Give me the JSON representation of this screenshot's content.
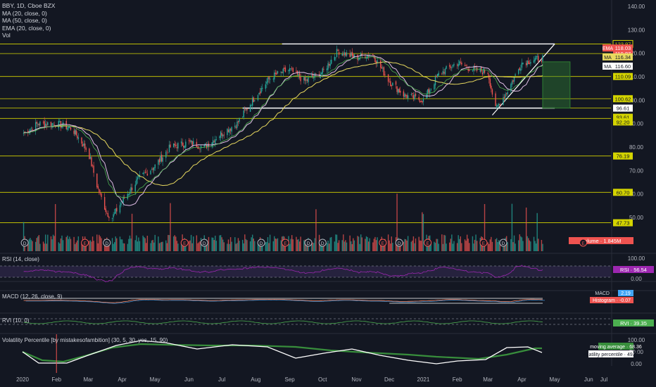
{
  "symbol": {
    "name": "BBY",
    "interval": "1D",
    "exchange": "Cboe BZX"
  },
  "indicators": [
    {
      "label": "MA (20, close, 0)"
    },
    {
      "label": "MA (50, close, 0)"
    },
    {
      "label": "EMA (20, close, 0)"
    },
    {
      "label": "Vol"
    }
  ],
  "colors": {
    "background": "#131722",
    "up": "#26a69a",
    "down": "#ef5350",
    "ma20": "#e1bee7",
    "ma50": "#e8d95f",
    "ema20": "#4caf50",
    "level_line": "#d4d400",
    "white_line": "#ffffff",
    "rsi_band": "#7e57c2",
    "rsi_line": "#9c27b0",
    "macd_line": "#ff8a65",
    "signal_line": "#42a5f5",
    "rvi": "#4caf50",
    "vp_ma": "#388e3c",
    "vp": "#ffffff",
    "zone": "#2e7d32"
  },
  "x_axis": [
    "2020",
    "Feb",
    "Mar",
    "Apr",
    "May",
    "Jun",
    "Jul",
    "Aug",
    "Sep",
    "Oct",
    "Nov",
    "Dec",
    "2021",
    "Feb",
    "Mar",
    "Apr",
    "May",
    "Jun",
    "Jul"
  ],
  "chart_data": [
    {
      "type": "candlestick",
      "title": "BBY, 1D, Cboe BZX",
      "ylim": [
        40,
        140
      ],
      "y_ticks": [
        "140.00",
        "130.00",
        "120.00",
        "110.00",
        "100.00",
        "90.00",
        "80.00",
        "70.00",
        "60.00",
        "50.00"
      ],
      "horizontal_levels": [
        "123.97",
        "119.87",
        "116.60",
        "118.03",
        "116.34",
        "110.09",
        "100.62",
        "96.61",
        "93.61",
        "92.20",
        "76.19",
        "60.70",
        "47.73"
      ],
      "price_labels": [
        {
          "name": "MA",
          "value": "116.60"
        },
        {
          "name": "EMA",
          "value": "118.03"
        },
        {
          "name": "MA",
          "value": "116.34"
        }
      ],
      "close_series": {
        "x": [
          "2020-01-02",
          "2020-01-15",
          "2020-02-01",
          "2020-02-15",
          "2020-03-01",
          "2020-03-10",
          "2020-03-18",
          "2020-03-23",
          "2020-04-01",
          "2020-04-15",
          "2020-05-01",
          "2020-05-15",
          "2020-06-01",
          "2020-06-15",
          "2020-07-01",
          "2020-07-15",
          "2020-08-01",
          "2020-08-15",
          "2020-09-01",
          "2020-09-15",
          "2020-10-01",
          "2020-10-15",
          "2020-11-01",
          "2020-11-15",
          "2020-12-01",
          "2020-12-15",
          "2021-01-01",
          "2021-01-15",
          "2021-02-01",
          "2021-02-15",
          "2021-03-01",
          "2021-03-08",
          "2021-03-20",
          "2021-04-01",
          "2021-04-10",
          "2021-04-20"
        ],
        "y": [
          86,
          90,
          90,
          88,
          78,
          62,
          52,
          50,
          57,
          66,
          72,
          80,
          82,
          80,
          86,
          90,
          102,
          110,
          113,
          108,
          112,
          121,
          118,
          120,
          108,
          102,
          100,
          111,
          116,
          113,
          112,
          96,
          105,
          116,
          117,
          118
        ]
      },
      "zone": {
        "x_start": "2021-04-20",
        "x_end": "2021-05-15",
        "y_top": 116.34,
        "y_bottom": 96.61
      }
    },
    {
      "type": "bar",
      "title": "Volume",
      "labels": [
        {
          "name": "Volume",
          "value": "1.845M"
        }
      ],
      "event_markers": [
        "D",
        "E",
        "D",
        "E",
        "D",
        "D",
        "E",
        "D",
        "E",
        "D",
        "E",
        "D",
        "E",
        "D",
        "E"
      ]
    },
    {
      "type": "line",
      "title": "RSI (14, close)",
      "labels": [
        {
          "name": "RSI",
          "value": "56.54"
        }
      ]
    },
    {
      "type": "line",
      "title": "MACD (12, 26, close, 9)",
      "labels": [
        {
          "name": "MACD",
          "value": "2.19"
        },
        {
          "name": "Histogram",
          "value": "-0.07"
        }
      ]
    },
    {
      "type": "line",
      "title": "RVI (10, 0)",
      "labels": [
        {
          "name": "RVI",
          "value": "39.35"
        }
      ]
    },
    {
      "type": "line",
      "title": "Volatility Percentile [by mistakesofambition] (30, 5, 30, yes, 15, 90)",
      "y_ticks": [
        "100.00",
        "50.00",
        "0.00"
      ],
      "labels": [
        {
          "name": "moving average",
          "value": "68.36"
        },
        {
          "name": "volatility percentile",
          "value": "49.97"
        }
      ]
    }
  ],
  "rsi_ticks": [
    "100.00",
    "0.00"
  ]
}
